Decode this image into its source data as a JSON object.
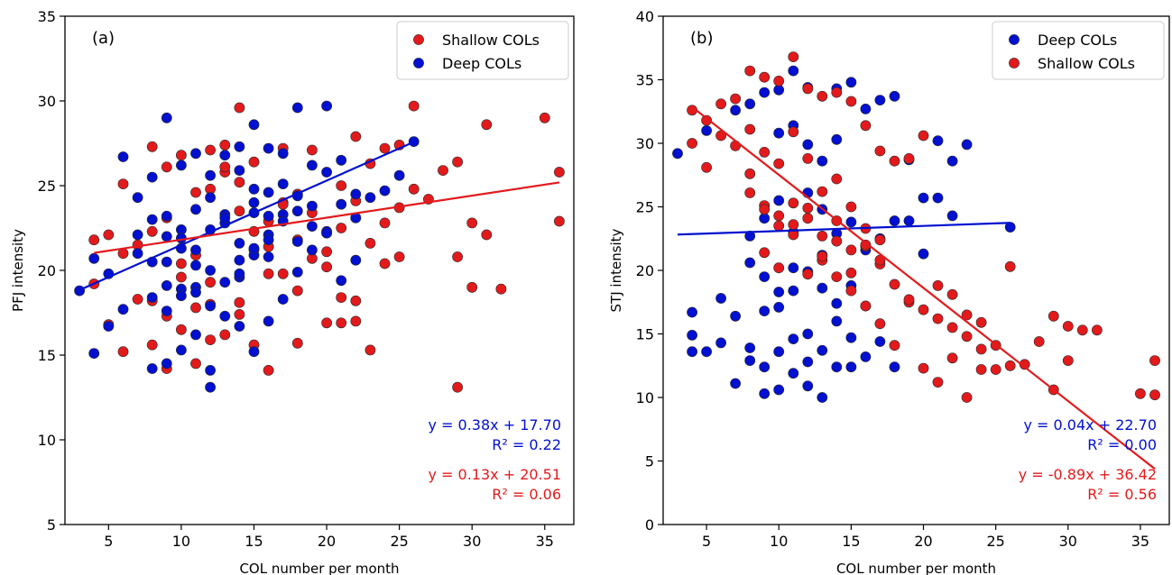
{
  "chart_data": [
    {
      "type": "scatter",
      "panel_label": "(a)",
      "xlabel": "COL number per month",
      "ylabel": "PFJ intensity",
      "xlim": [
        2,
        37
      ],
      "ylim": [
        5,
        35
      ],
      "xticks": [
        5,
        10,
        15,
        20,
        25,
        30,
        35
      ],
      "yticks": [
        5,
        10,
        15,
        20,
        25,
        30,
        35
      ],
      "legend_position": "top-right",
      "series": [
        {
          "name": "Shallow COLs",
          "color": "#e31a1c",
          "x": [
            4,
            4,
            5,
            5,
            6,
            6,
            7,
            8,
            8,
            9,
            9,
            10,
            11,
            11,
            12,
            12,
            13,
            13,
            14,
            14,
            15,
            15,
            16,
            17,
            17,
            18,
            19,
            20,
            21,
            21,
            22,
            22,
            23,
            23,
            24,
            25,
            25,
            26,
            26,
            27,
            28,
            29,
            29,
            29,
            30,
            30,
            31,
            31,
            32,
            35,
            36,
            36,
            6,
            7,
            8,
            9,
            10,
            11,
            12,
            13,
            14,
            15,
            16,
            17,
            18,
            19,
            20,
            21,
            22,
            23,
            24,
            25,
            8,
            9,
            10,
            11,
            12,
            13,
            14,
            15,
            16,
            17,
            18,
            19,
            20,
            21,
            22,
            10,
            12,
            14,
            16,
            18,
            20,
            22,
            24
          ],
          "y": [
            21.8,
            19.2,
            22.1,
            16.8,
            15.2,
            25.1,
            18.3,
            27.3,
            15.6,
            14.2,
            26.1,
            26.8,
            14.5,
            17.8,
            27.1,
            15.9,
            16.2,
            27.4,
            29.6,
            18.1,
            15.6,
            26.4,
            14.1,
            19.8,
            27.2,
            15.7,
            27.1,
            21.1,
            16.9,
            18.4,
            27.9,
            18.2,
            15.3,
            26.3,
            27.2,
            27.4,
            20.8,
            29.7,
            24.8,
            24.2,
            25.9,
            13.1,
            20.8,
            26.4,
            22.8,
            19.0,
            28.6,
            22.1,
            18.9,
            29.0,
            25.8,
            22.9,
            21.0,
            21.5,
            22.3,
            23.1,
            20.4,
            24.6,
            19.3,
            25.8,
            23.5,
            21.2,
            22.9,
            24.0,
            21.8,
            23.4,
            20.2,
            22.5,
            24.1,
            21.6,
            22.8,
            23.7,
            18.2,
            17.3,
            19.6,
            20.9,
            24.8,
            26.1,
            25.2,
            22.3,
            21.4,
            23.9,
            24.5,
            20.7,
            22.2,
            25.0,
            23.1,
            16.5,
            18.0,
            17.4,
            19.8,
            18.8,
            16.9,
            17.0,
            20.4
          ]
        },
        {
          "name": "Deep COLs",
          "color": "#0010d0",
          "x": [
            3,
            4,
            4,
            5,
            5,
            6,
            6,
            7,
            7,
            8,
            8,
            8,
            9,
            9,
            9,
            9,
            10,
            10,
            10,
            10,
            11,
            11,
            11,
            12,
            12,
            12,
            13,
            13,
            13,
            14,
            14,
            14,
            15,
            15,
            15,
            15,
            16,
            16,
            16,
            17,
            17,
            18,
            18,
            19,
            19,
            20,
            20,
            21,
            21,
            22,
            22,
            23,
            24,
            25,
            26,
            9,
            10,
            11,
            12,
            13,
            14,
            15,
            16,
            17,
            18,
            19,
            20,
            21,
            22,
            8,
            9,
            10,
            11,
            12,
            13,
            14,
            15,
            16,
            17,
            18,
            19,
            20,
            9,
            10,
            11,
            12,
            13,
            14,
            15,
            16,
            17,
            18,
            7,
            8,
            11,
            12,
            14,
            16
          ],
          "y": [
            18.8,
            15.1,
            20.7,
            19.8,
            16.7,
            26.7,
            17.7,
            24.3,
            21.0,
            14.2,
            18.4,
            25.5,
            29.0,
            14.5,
            20.5,
            23.2,
            15.3,
            26.2,
            18.9,
            22.4,
            16.2,
            26.9,
            21.2,
            13.1,
            14.1,
            25.6,
            17.3,
            26.8,
            23.3,
            16.7,
            27.3,
            19.6,
            15.2,
            28.6,
            23.4,
            20.9,
            17.0,
            27.2,
            24.6,
            18.3,
            26.9,
            19.9,
            29.6,
            21.2,
            26.2,
            29.7,
            22.3,
            19.4,
            26.5,
            20.6,
            23.1,
            24.3,
            24.7,
            25.6,
            27.6,
            22.0,
            21.3,
            23.6,
            24.3,
            22.8,
            25.9,
            24.8,
            23.2,
            25.1,
            24.4,
            22.6,
            25.8,
            23.9,
            24.5,
            20.5,
            19.1,
            21.9,
            20.3,
            22.4,
            23.1,
            21.6,
            24.0,
            22.1,
            23.3,
            21.7,
            23.8,
            22.2,
            17.6,
            18.5,
            19.0,
            20.0,
            19.3,
            20.6,
            21.3,
            21.8,
            22.9,
            23.5,
            22.1,
            23.0,
            18.7,
            17.9,
            19.8,
            20.8
          ]
        }
      ],
      "fits": [
        {
          "color": "#0010d0",
          "slope": 0.38,
          "intercept": 17.7,
          "x_range": [
            3,
            26
          ]
        },
        {
          "color": "#e31a1c",
          "slope": 0.13,
          "intercept": 20.51,
          "x_range": [
            4,
            36
          ]
        }
      ],
      "annotations": [
        {
          "color": "#0010d0",
          "lines": [
            "y = 0.38x + 17.70",
            "R² = 0.22"
          ]
        },
        {
          "color": "#e31a1c",
          "lines": [
            "y = 0.13x + 20.51",
            "R² = 0.06"
          ]
        }
      ]
    },
    {
      "type": "scatter",
      "panel_label": "(b)",
      "xlabel": "COL number per month",
      "ylabel": "STJ intensity",
      "xlim": [
        2,
        37
      ],
      "ylim": [
        0,
        40
      ],
      "xticks": [
        5,
        10,
        15,
        20,
        25,
        30,
        35
      ],
      "yticks": [
        0,
        5,
        10,
        15,
        20,
        25,
        30,
        35,
        40
      ],
      "legend_position": "top-right",
      "series": [
        {
          "name": "Deep COLs",
          "color": "#0010d0",
          "x": [
            3,
            4,
            4,
            4,
            5,
            5,
            6,
            6,
            7,
            7,
            7,
            8,
            8,
            8,
            8,
            9,
            9,
            9,
            9,
            10,
            10,
            10,
            10,
            11,
            11,
            11,
            11,
            12,
            12,
            12,
            12,
            13,
            13,
            13,
            14,
            14,
            14,
            15,
            15,
            15,
            16,
            16,
            16,
            17,
            17,
            17,
            18,
            18,
            18,
            19,
            19,
            20,
            20,
            21,
            21,
            22,
            22,
            23,
            26,
            8,
            9,
            10,
            11,
            12,
            13,
            14,
            15,
            9,
            10,
            11,
            12,
            13,
            14,
            15,
            16,
            10,
            11,
            12,
            13,
            14
          ],
          "y": [
            29.2,
            16.7,
            14.9,
            13.6,
            13.6,
            31.0,
            14.3,
            17.8,
            11.1,
            16.4,
            32.6,
            12.9,
            13.9,
            20.6,
            33.1,
            10.3,
            12.4,
            16.8,
            34.0,
            10.6,
            13.6,
            17.1,
            34.2,
            11.9,
            14.6,
            18.4,
            35.7,
            10.9,
            12.8,
            15.0,
            34.4,
            10.0,
            13.7,
            21.2,
            12.4,
            16.0,
            34.3,
            12.4,
            14.7,
            34.8,
            13.2,
            21.6,
            32.7,
            14.4,
            22.5,
            33.4,
            12.4,
            23.9,
            33.7,
            23.9,
            28.7,
            21.3,
            25.7,
            25.7,
            30.2,
            24.3,
            28.6,
            29.9,
            23.4,
            22.7,
            24.1,
            25.5,
            23.0,
            26.1,
            24.8,
            22.9,
            23.8,
            19.5,
            18.3,
            20.2,
            19.9,
            18.6,
            17.4,
            18.8,
            17.2,
            30.8,
            31.4,
            29.9,
            28.6,
            30.3
          ]
        },
        {
          "name": "Shallow COLs",
          "color": "#e31a1c",
          "x": [
            4,
            4,
            5,
            5,
            6,
            6,
            7,
            7,
            8,
            8,
            8,
            9,
            9,
            9,
            10,
            10,
            10,
            11,
            11,
            11,
            12,
            12,
            12,
            13,
            13,
            13,
            14,
            14,
            14,
            15,
            15,
            15,
            16,
            16,
            16,
            17,
            17,
            17,
            18,
            18,
            19,
            19,
            20,
            20,
            21,
            21,
            22,
            22,
            23,
            23,
            24,
            24,
            25,
            25,
            26,
            26,
            27,
            28,
            29,
            29,
            30,
            30,
            31,
            32,
            35,
            36,
            36,
            9,
            10,
            11,
            12,
            13,
            14,
            15,
            16,
            17,
            18,
            19,
            20,
            21,
            22,
            23,
            24,
            8,
            9,
            10,
            11,
            12,
            13,
            14,
            15,
            16,
            17
          ],
          "y": [
            32.6,
            30.0,
            31.8,
            28.1,
            33.1,
            30.6,
            29.8,
            33.5,
            35.7,
            27.6,
            31.1,
            25.1,
            35.2,
            29.3,
            24.3,
            34.9,
            28.4,
            36.8,
            23.6,
            30.9,
            34.3,
            24.9,
            28.8,
            33.7,
            20.8,
            26.2,
            34.0,
            19.5,
            27.2,
            33.3,
            18.4,
            25.0,
            31.4,
            17.2,
            23.3,
            29.4,
            15.8,
            22.4,
            28.6,
            14.1,
            17.5,
            28.8,
            30.6,
            12.3,
            18.8,
            11.2,
            13.1,
            18.1,
            10.0,
            16.5,
            13.8,
            12.2,
            14.1,
            12.2,
            20.3,
            12.5,
            12.6,
            14.4,
            10.6,
            16.4,
            15.6,
            12.9,
            15.3,
            15.3,
            10.3,
            12.9,
            10.2,
            21.4,
            20.2,
            22.8,
            19.7,
            21.1,
            22.3,
            19.8,
            21.9,
            20.5,
            18.9,
            17.7,
            16.9,
            16.2,
            15.5,
            14.8,
            15.9,
            26.1,
            24.8,
            23.5,
            25.3,
            24.1,
            22.7,
            23.9,
            21.6,
            22.0,
            20.8
          ]
        }
      ],
      "fits": [
        {
          "color": "#0010d0",
          "slope": 0.04,
          "intercept": 22.7,
          "x_range": [
            3,
            26
          ]
        },
        {
          "color": "#e31a1c",
          "slope": -0.89,
          "intercept": 36.42,
          "x_range": [
            4,
            36
          ]
        }
      ],
      "annotations": [
        {
          "color": "#0010d0",
          "lines": [
            "y = 0.04x + 22.70",
            "R² = 0.00"
          ]
        },
        {
          "color": "#e31a1c",
          "lines": [
            "y = -0.89x + 36.42",
            "R² = 0.56"
          ]
        }
      ]
    }
  ]
}
